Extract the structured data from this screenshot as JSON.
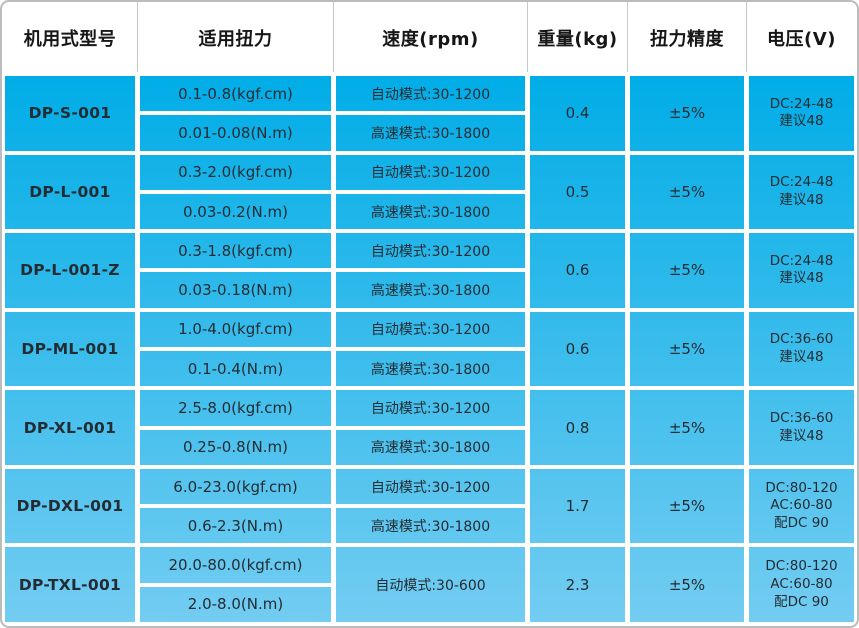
{
  "colors": {
    "cell_blue_top": "#00ade7",
    "cell_blue_bottom": "#74ccf1",
    "header_bg": "#ffffff",
    "outer_border": "#bcbcbc",
    "header_divider": "#c9c9c9",
    "header_text": "#161616",
    "cell_text": "#242c33",
    "cell_gap": "#ffffff"
  },
  "chart_data": {
    "type": "table",
    "title": "",
    "columns": [
      "机用式型号",
      "适用扭力",
      "速度(rpm)",
      "重量(kg)",
      "扭力精度",
      "电压(V)"
    ],
    "rows": [
      {
        "model": "DP-S-001",
        "torque_kgfcm": "0.1-0.8(kgf.cm)",
        "torque_nm": "0.01-0.08(N.m)",
        "speed_auto": "自动模式:30-1200",
        "speed_high": "高速模式:30-1800",
        "weight": "0.4",
        "accuracy": "±5%",
        "voltage_line1": "DC:24-48",
        "voltage_line2": "建议48"
      },
      {
        "model": "DP-L-001",
        "torque_kgfcm": "0.3-2.0(kgf.cm)",
        "torque_nm": "0.03-0.2(N.m)",
        "speed_auto": "自动模式:30-1200",
        "speed_high": "高速模式:30-1800",
        "weight": "0.5",
        "accuracy": "±5%",
        "voltage_line1": "DC:24-48",
        "voltage_line2": "建议48"
      },
      {
        "model": "DP-L-001-Z",
        "torque_kgfcm": "0.3-1.8(kgf.cm)",
        "torque_nm": "0.03-0.18(N.m)",
        "speed_auto": "自动模式:30-1200",
        "speed_high": "高速模式:30-1800",
        "weight": "0.6",
        "accuracy": "±5%",
        "voltage_line1": "DC:24-48",
        "voltage_line2": "建议48"
      },
      {
        "model": "DP-ML-001",
        "torque_kgfcm": "1.0-4.0(kgf.cm)",
        "torque_nm": "0.1-0.4(N.m)",
        "speed_auto": "自动模式:30-1200",
        "speed_high": "高速模式:30-1800",
        "weight": "0.6",
        "accuracy": "±5%",
        "voltage_line1": "DC:36-60",
        "voltage_line2": "建议48"
      },
      {
        "model": "DP-XL-001",
        "torque_kgfcm": "2.5-8.0(kgf.cm)",
        "torque_nm": "0.25-0.8(N.m)",
        "speed_auto": "自动模式:30-1200",
        "speed_high": "高速模式:30-1800",
        "weight": "0.8",
        "accuracy": "±5%",
        "voltage_line1": "DC:36-60",
        "voltage_line2": "建议48"
      },
      {
        "model": "DP-DXL-001",
        "torque_kgfcm": "6.0-23.0(kgf.cm)",
        "torque_nm": "0.6-2.3(N.m)",
        "speed_auto": "自动模式:30-1200",
        "speed_high": "高速模式:30-1800",
        "weight": "1.7",
        "accuracy": "±5%",
        "voltage_line1": "DC:80-120",
        "voltage_line2": "AC:60-80",
        "voltage_line3": "配DC 90"
      },
      {
        "model": "DP-TXL-001",
        "torque_kgfcm": "20.0-80.0(kgf.cm)",
        "torque_nm": "2.0-8.0(N.m)",
        "speed_auto": "自动模式:30-600",
        "weight": "2.3",
        "accuracy": "±5%",
        "voltage_line1": "DC:80-120",
        "voltage_line2": "AC:60-80",
        "voltage_line3": "配DC 90"
      }
    ]
  }
}
